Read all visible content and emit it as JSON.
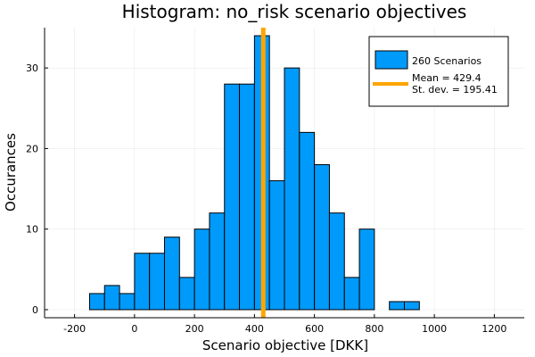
{
  "chart_data": {
    "type": "bar",
    "title": "Histogram: no_risk scenario objectives",
    "xlabel": "Scenario objective [DKK]",
    "ylabel": "Occurances",
    "xlim": [
      -300,
      1300
    ],
    "ylim": [
      -1,
      35
    ],
    "xticks": [
      -200,
      0,
      200,
      400,
      600,
      800,
      1000,
      1200
    ],
    "xtick_labels": [
      "-200",
      "0",
      "200",
      "400",
      "600",
      "800",
      "1000",
      "1200"
    ],
    "yticks": [
      0,
      10,
      20,
      30
    ],
    "ytick_labels": [
      "0",
      "10",
      "20",
      "30"
    ],
    "grid": true,
    "legend_position": "top-right",
    "bin_width": 50,
    "bins": [
      {
        "start": -150,
        "count": 2
      },
      {
        "start": -100,
        "count": 3
      },
      {
        "start": -50,
        "count": 2
      },
      {
        "start": 0,
        "count": 7
      },
      {
        "start": 50,
        "count": 7
      },
      {
        "start": 100,
        "count": 9
      },
      {
        "start": 150,
        "count": 4
      },
      {
        "start": 200,
        "count": 10
      },
      {
        "start": 250,
        "count": 12
      },
      {
        "start": 300,
        "count": 28
      },
      {
        "start": 350,
        "count": 28
      },
      {
        "start": 400,
        "count": 34
      },
      {
        "start": 450,
        "count": 16
      },
      {
        "start": 500,
        "count": 30
      },
      {
        "start": 550,
        "count": 22
      },
      {
        "start": 600,
        "count": 18
      },
      {
        "start": 650,
        "count": 12
      },
      {
        "start": 700,
        "count": 4
      },
      {
        "start": 750,
        "count": 10
      },
      {
        "start": 800,
        "count": 0
      },
      {
        "start": 850,
        "count": 1
      },
      {
        "start": 900,
        "count": 1
      }
    ],
    "series": [
      {
        "name": "260 Scenarios",
        "color": "#009AFA"
      }
    ],
    "mean_line": {
      "x": 429.4,
      "color": "#FFA500"
    },
    "mean_label": "Mean = 429.4",
    "std_label": "St. dev. = 195.41"
  }
}
